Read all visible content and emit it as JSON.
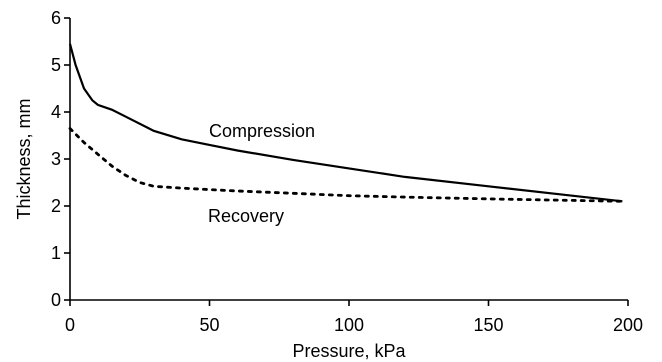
{
  "chart_data": {
    "type": "line",
    "xlabel": "Pressure, kPa",
    "ylabel": "Thickness, mm",
    "xlim": [
      0,
      200
    ],
    "ylim": [
      0,
      6
    ],
    "x_ticks": [
      "0",
      "50",
      "100",
      "150",
      "200"
    ],
    "y_ticks": [
      "0",
      "1",
      "2",
      "3",
      "4",
      "5",
      "6"
    ],
    "grid": false,
    "series": [
      {
        "label": "Compression",
        "line_style": "solid",
        "color": "#000000",
        "x": [
          0,
          2,
          5,
          8,
          10,
          15,
          20,
          30,
          40,
          50,
          60,
          80,
          100,
          120,
          150,
          180,
          198
        ],
        "y": [
          5.45,
          5.0,
          4.5,
          4.25,
          4.15,
          4.05,
          3.9,
          3.6,
          3.42,
          3.3,
          3.18,
          2.98,
          2.8,
          2.62,
          2.42,
          2.22,
          2.1
        ]
      },
      {
        "label": "Recovery",
        "line_style": "dotted",
        "color": "#000000",
        "x": [
          0,
          5,
          10,
          15,
          20,
          25,
          30,
          40,
          50,
          60,
          80,
          100,
          120,
          150,
          180,
          198
        ],
        "y": [
          3.65,
          3.35,
          3.1,
          2.85,
          2.65,
          2.5,
          2.42,
          2.38,
          2.35,
          2.32,
          2.27,
          2.22,
          2.19,
          2.15,
          2.12,
          2.1
        ]
      }
    ]
  }
}
